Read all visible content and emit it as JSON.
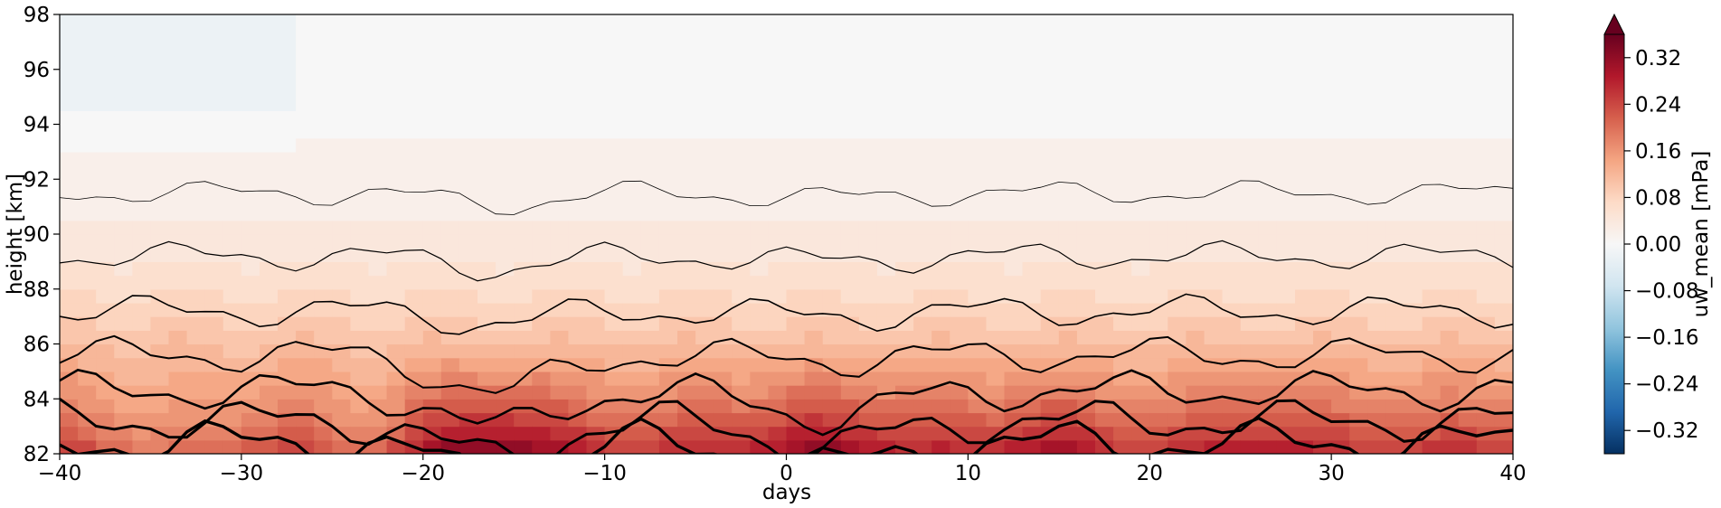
{
  "chart_data": {
    "type": "heatmap",
    "subtype": "filled-contour",
    "xlabel": "days",
    "ylabel": "height [km]",
    "xlim": [
      -40,
      40
    ],
    "ylim": [
      82,
      98
    ],
    "xticks": [
      -40,
      -30,
      -20,
      -10,
      0,
      10,
      20,
      30,
      40
    ],
    "xtick_labels": [
      "−40",
      "−30",
      "−20",
      "−10",
      "0",
      "10",
      "20",
      "30",
      "40"
    ],
    "yticks": [
      82,
      84,
      86,
      88,
      90,
      92,
      94,
      96,
      98
    ],
    "ytick_labels": [
      "82",
      "84",
      "86",
      "88",
      "90",
      "92",
      "94",
      "96",
      "98"
    ],
    "colormap": "RdBu_r",
    "colorbar": {
      "label": "uw_mean [mPa]",
      "range": [
        -0.36,
        0.36
      ],
      "extend": "max",
      "ticks": [
        -0.32,
        -0.24,
        -0.16,
        -0.08,
        0.0,
        0.08,
        0.16,
        0.24,
        0.32
      ],
      "tick_labels": [
        "−0.32",
        "−0.24",
        "−0.16",
        "−0.08",
        "0.00",
        "0.08",
        "0.16",
        "0.24",
        "0.32"
      ]
    },
    "grid": false,
    "description_values": {
      "height_profile_km": [
        82,
        83,
        84,
        85,
        86,
        87,
        88,
        89,
        90,
        91,
        92,
        93,
        94,
        95,
        96,
        97,
        98
      ],
      "typical_uw_mean_mPa": [
        0.26,
        0.21,
        0.17,
        0.14,
        0.11,
        0.085,
        0.065,
        0.05,
        0.035,
        0.025,
        0.018,
        0.012,
        0.006,
        0.002,
        0.0,
        -0.002,
        -0.004
      ],
      "max_value_region": {
        "days": [
          -18,
          -14
        ],
        "height_km": 82,
        "uw_mean_mPa": 0.36
      },
      "secondary_max_regions": [
        {
          "days": [
            0,
            4
          ],
          "height_km": 82
        },
        {
          "days": [
            12,
            16
          ],
          "height_km": 82
        },
        {
          "days": [
            24,
            28
          ],
          "height_km": 82
        }
      ],
      "negative_region": {
        "days": [
          -40,
          -28
        ],
        "height_km": [
          93,
          98
        ],
        "uw_mean_mPa": -0.02
      }
    }
  }
}
